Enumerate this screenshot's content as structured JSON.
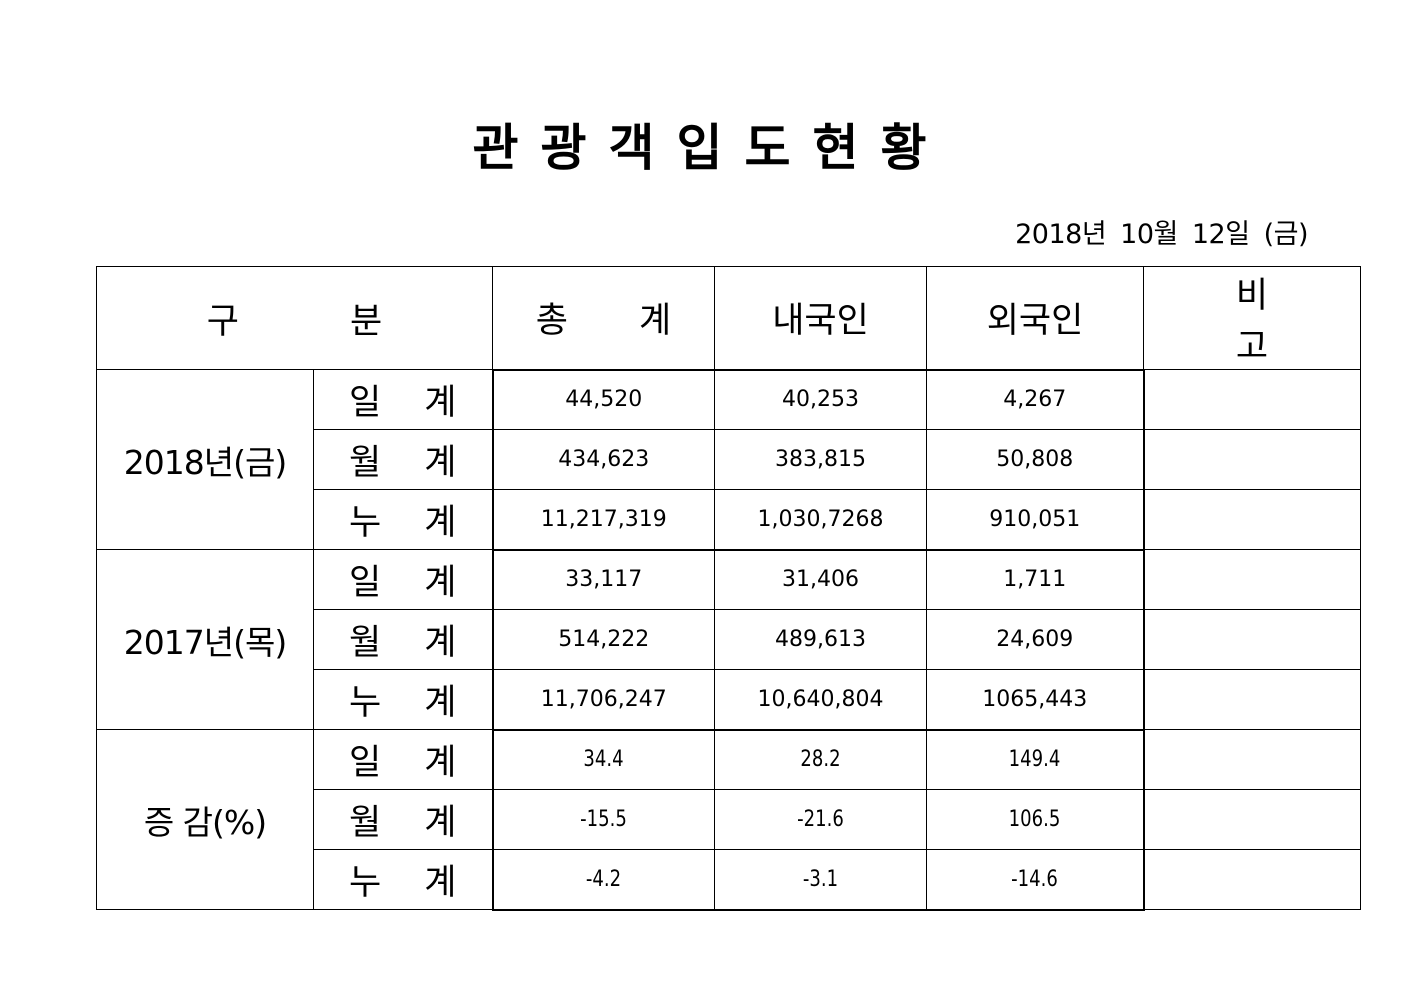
{
  "title": "관광객입도현황",
  "date": {
    "year": "2018년",
    "month": "10월",
    "day": "12일",
    "weekday": "(금)"
  },
  "table": {
    "headers": {
      "category": "구 분",
      "total": "총 계",
      "domestic": "내국인",
      "foreign": "외국인",
      "remarks": "비 고"
    },
    "groups": [
      {
        "label": "2018년(금)",
        "rows": [
          {
            "label": "일 계",
            "total": "44,520",
            "domestic": "40,253",
            "foreign": "4,267",
            "remarks": ""
          },
          {
            "label": "월 계",
            "total": "434,623",
            "domestic": "383,815",
            "foreign": "50,808",
            "remarks": ""
          },
          {
            "label": "누 계",
            "total": "11,217,319",
            "domestic": "1,030,7268",
            "foreign": "910,051",
            "remarks": ""
          }
        ]
      },
      {
        "label": "2017년(목)",
        "rows": [
          {
            "label": "일 계",
            "total": "33,117",
            "domestic": "31,406",
            "foreign": "1,711",
            "remarks": ""
          },
          {
            "label": "월 계",
            "total": "514,222",
            "domestic": "489,613",
            "foreign": "24,609",
            "remarks": ""
          },
          {
            "label": "누 계",
            "total": "11,706,247",
            "domestic": "10,640,804",
            "foreign": "1065,443",
            "remarks": ""
          }
        ]
      },
      {
        "label": "증 감(%)",
        "rows": [
          {
            "label": "일 계",
            "total": "34.4",
            "domestic": "28.2",
            "foreign": "149.4",
            "remarks": ""
          },
          {
            "label": "월 계",
            "total": "-15.5",
            "domestic": "-21.6",
            "foreign": "106.5",
            "remarks": ""
          },
          {
            "label": "누 계",
            "total": "-4.2",
            "domestic": "-3.1",
            "foreign": "-14.6",
            "remarks": ""
          }
        ]
      }
    ]
  }
}
